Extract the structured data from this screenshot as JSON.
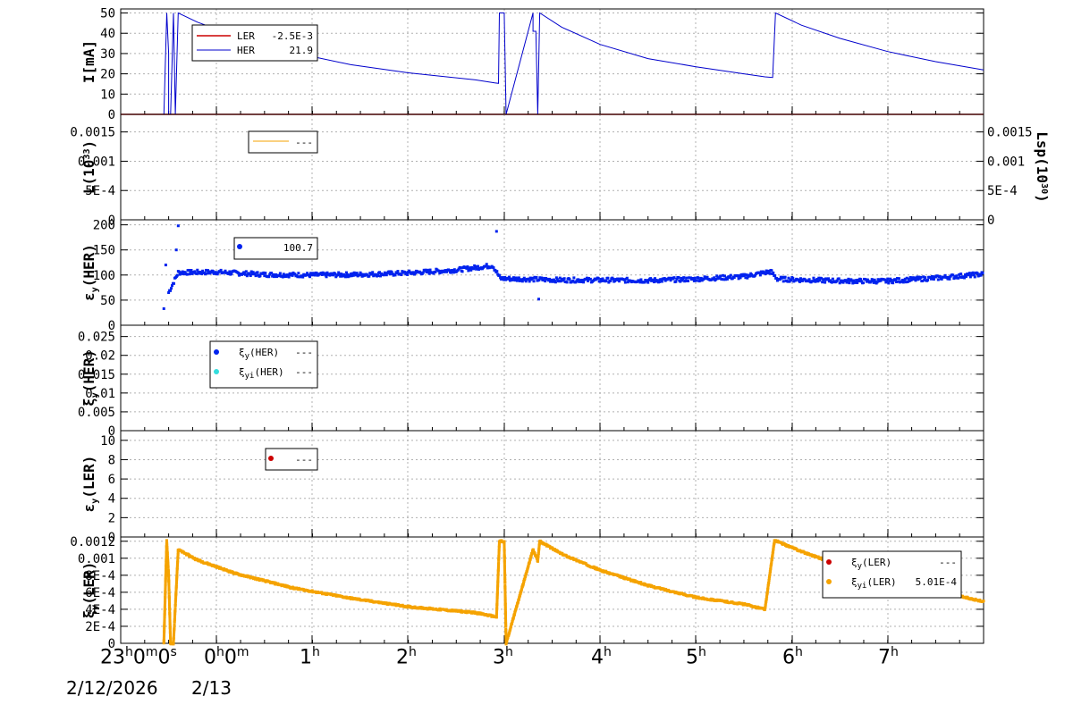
{
  "x_axis": {
    "date_left": "2/12/2026",
    "date_right": "2/13",
    "tick_labels": [
      {
        "h": "23",
        "m": "0",
        "s": "0"
      },
      {
        "h": "0",
        "m": "0"
      },
      {
        "h": "1"
      },
      {
        "h": "2"
      },
      {
        "h": "3"
      },
      {
        "h": "4"
      },
      {
        "h": "5"
      },
      {
        "h": "6"
      },
      {
        "h": "7"
      }
    ]
  },
  "colors": {
    "her": "#0000cc",
    "ler": "#cc0000",
    "her_points": "#0022ee",
    "ler_orange": "#f5a300",
    "cyan": "#33dddd",
    "grid": "#b0b0b0"
  },
  "chart_data": [
    {
      "type": "line",
      "ylabel": "I[mA]",
      "ylim": [
        0,
        52
      ],
      "yticks": [
        "0",
        "10",
        "20",
        "30",
        "40",
        "50"
      ],
      "x_unit": "hours since 23:00",
      "xlim": [
        0,
        9
      ],
      "series": [
        {
          "name": "LER",
          "value": "-2.5E-3",
          "color": "#cc0000",
          "x": [
            0,
            9
          ],
          "y": [
            0,
            0
          ]
        },
        {
          "name": "HER",
          "value": "21.9",
          "color": "#0000cc",
          "x": [
            0,
            0.45,
            0.48,
            0.5,
            0.5,
            0.52,
            0.55,
            0.57,
            0.6,
            0.8,
            1.2,
            1.8,
            2.4,
            3.0,
            3.7,
            3.9,
            3.94,
            3.95,
            4.0,
            4.02,
            4.3,
            4.3,
            4.33,
            4.35,
            4.37,
            4.6,
            5.0,
            5.5,
            6.0,
            6.5,
            6.72,
            6.8,
            6.83,
            7.1,
            7.5,
            8.0,
            8.5,
            9.0
          ],
          "y": [
            0,
            0,
            50,
            30,
            0,
            0,
            50,
            0,
            50,
            45.5,
            38.5,
            30.5,
            24.5,
            20.5,
            17,
            15.5,
            15.3,
            50,
            50,
            0,
            50,
            41,
            41,
            0,
            50,
            43,
            34.5,
            27.5,
            23.5,
            20,
            18.5,
            18.2,
            50,
            44,
            37.5,
            31,
            26,
            21.9
          ]
        }
      ]
    },
    {
      "type": "line",
      "ylabel": "L(10^33)",
      "ylabel_right": "Lsp(10^30)",
      "ylim": [
        0,
        0.0018
      ],
      "yticks": [
        "0",
        "5E-4",
        "0.001",
        "0.0015"
      ],
      "series": [
        {
          "name": "---",
          "color": "#f5a300",
          "x": [],
          "y": []
        }
      ]
    },
    {
      "type": "scatter",
      "ylabel": "εy(HER)",
      "ylim": [
        0,
        210
      ],
      "yticks": [
        "0",
        "50",
        "100",
        "150",
        "200"
      ],
      "series": [
        {
          "name": "100.7",
          "color": "#0022ee",
          "trend_x": [
            0.5,
            0.6,
            1.0,
            1.5,
            2.0,
            2.5,
            3.0,
            3.5,
            3.88,
            3.96,
            4.2,
            4.6,
            5.0,
            5.5,
            6.0,
            6.5,
            6.78,
            6.85,
            7.2,
            7.6,
            8.0,
            8.5,
            9.0
          ],
          "trend_y": [
            65,
            105,
            106,
            101,
            100,
            101,
            104,
            110,
            119,
            93,
            92,
            90,
            90,
            89,
            92,
            97,
            107,
            92,
            90,
            88,
            88,
            94,
            102
          ],
          "outliers_x": [
            0.45,
            0.47,
            0.58,
            0.6,
            3.92,
            4.36
          ],
          "outliers_y": [
            33,
            120,
            150,
            198,
            187,
            52
          ]
        }
      ]
    },
    {
      "type": "scatter",
      "ylabel": "ξy(HER)",
      "ylim": [
        0,
        0.028
      ],
      "yticks": [
        "0",
        "0.005",
        "0.01",
        "0.015",
        "0.02",
        "0.025"
      ],
      "series": [
        {
          "name": "ξy(HER)",
          "value": "---",
          "color": "#0022ee",
          "x": [],
          "y": []
        },
        {
          "name": "ξyi(HER)",
          "value": "---",
          "color": "#33dddd",
          "x": [],
          "y": []
        }
      ]
    },
    {
      "type": "scatter",
      "ylabel": "εy(LER)",
      "ylim": [
        0,
        11
      ],
      "yticks": [
        "0",
        "2",
        "4",
        "6",
        "8",
        "10"
      ],
      "series": [
        {
          "name": "---",
          "color": "#cc0000",
          "x": [],
          "y": []
        }
      ]
    },
    {
      "type": "scatter",
      "ylabel": "ξy(LER)",
      "ylim": [
        0,
        0.00125
      ],
      "yticks": [
        "0",
        "2E-4",
        "4E-4",
        "6E-4",
        "8E-4",
        "0.001",
        "0.0012"
      ],
      "series": [
        {
          "name": "ξy(LER)",
          "value": "---",
          "color": "#cc0000",
          "x": [],
          "y": []
        },
        {
          "name": "ξyi(LER)",
          "value": "5.01E-4",
          "color": "#f5a300",
          "x": [
            0.45,
            0.48,
            0.5,
            0.52,
            0.55,
            0.6,
            0.8,
            1.2,
            1.8,
            2.4,
            3.0,
            3.7,
            3.92,
            3.95,
            4.0,
            4.02,
            4.3,
            4.35,
            4.37,
            4.6,
            5.0,
            5.5,
            6.0,
            6.5,
            6.72,
            6.82,
            7.1,
            7.5,
            8.0,
            8.5,
            9.0
          ],
          "y": [
            0,
            0.0012,
            0.0008,
            0,
            0,
            0.0011,
            0.00098,
            0.00082,
            0.00065,
            0.00053,
            0.00043,
            0.00036,
            0.00031,
            0.0012,
            0.0012,
            0,
            0.0011,
            0.00097,
            0.0012,
            0.00105,
            0.00086,
            0.00068,
            0.00054,
            0.00046,
            0.0004,
            0.00121,
            0.00108,
            0.00092,
            0.00075,
            0.00062,
            0.00049
          ],
          "gaps": [
            3,
            15,
            17
          ]
        }
      ]
    }
  ]
}
